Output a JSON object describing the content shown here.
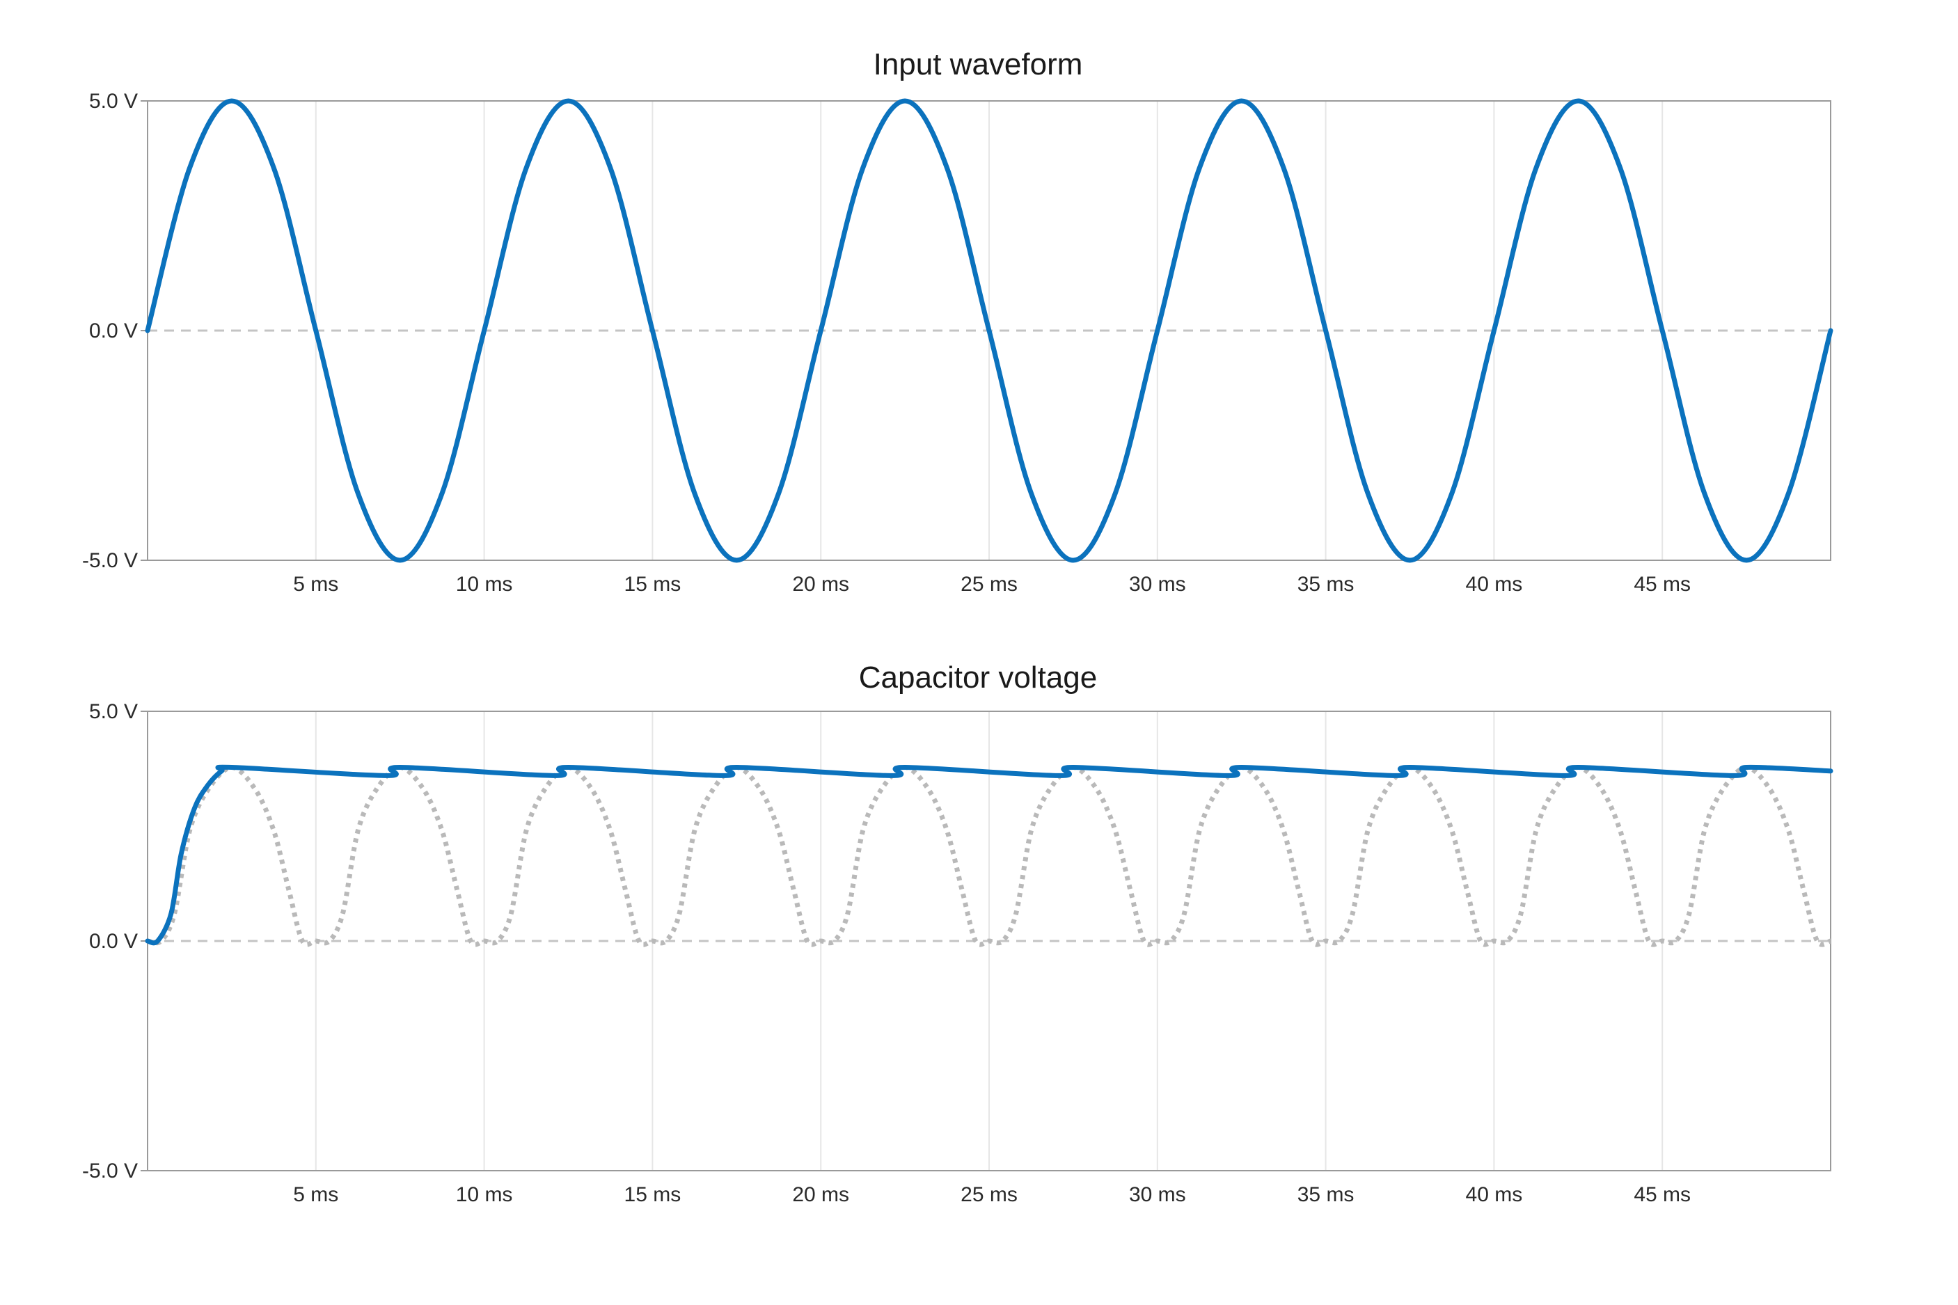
{
  "colors": {
    "series": "#0b72bd",
    "reference": "#b9b9b9",
    "zero_line": "#c4c4c4",
    "grid": "#e6e6e6",
    "axis": "#9a9a9a"
  },
  "chart_data": [
    {
      "type": "line",
      "title": "Input waveform",
      "xlabel": "",
      "ylabel": "",
      "xlim": [
        0,
        50
      ],
      "ylim": [
        -5,
        5
      ],
      "x_unit": "ms",
      "x_ticks": [
        5,
        10,
        15,
        20,
        25,
        30,
        35,
        40,
        45
      ],
      "x_tick_labels": [
        "5 ms",
        "10 ms",
        "15 ms",
        "20 ms",
        "25 ms",
        "30 ms",
        "35 ms",
        "40 ms",
        "45 ms"
      ],
      "y_ticks": [
        5,
        0,
        -5
      ],
      "y_tick_labels": [
        "5.0 V",
        "0.0 V",
        "-5.0 V"
      ],
      "grid": "vertical",
      "zero_line": "dashed",
      "series": [
        {
          "style": "solid",
          "x": [
            0,
            1.25,
            2.5,
            3.75,
            5,
            6.25,
            7.5,
            8.75,
            10,
            11.25,
            12.5,
            13.75,
            15,
            16.25,
            17.5,
            18.75,
            20,
            21.25,
            22.5,
            23.75,
            25,
            26.25,
            27.5,
            28.75,
            30,
            31.25,
            32.5,
            33.75,
            35,
            36.25,
            37.5,
            38.75,
            40,
            41.25,
            42.5,
            43.75,
            45,
            46.25,
            47.5,
            48.75,
            50
          ],
          "y": [
            0,
            3.54,
            5,
            3.54,
            0,
            -3.54,
            -5,
            -3.54,
            0,
            3.54,
            5,
            3.54,
            0,
            -3.54,
            -5,
            -3.54,
            0,
            3.54,
            5,
            3.54,
            0,
            -3.54,
            -5,
            -3.54,
            0,
            3.54,
            5,
            3.54,
            0,
            -3.54,
            -5,
            -3.54,
            0,
            3.54,
            5,
            3.54,
            0,
            -3.54,
            -5,
            -3.54,
            0
          ]
        }
      ]
    },
    {
      "type": "line",
      "title": "Capacitor voltage",
      "xlabel": "",
      "ylabel": "",
      "xlim": [
        0,
        50
      ],
      "ylim": [
        -5,
        5
      ],
      "x_unit": "ms",
      "x_ticks": [
        5,
        10,
        15,
        20,
        25,
        30,
        35,
        40,
        45
      ],
      "x_tick_labels": [
        "5 ms",
        "10 ms",
        "15 ms",
        "20 ms",
        "25 ms",
        "30 ms",
        "35 ms",
        "40 ms",
        "45 ms"
      ],
      "y_ticks": [
        5,
        0,
        -5
      ],
      "y_tick_labels": [
        "5.0 V",
        "0.0 V",
        "-5.0 V"
      ],
      "grid": "vertical",
      "zero_line": "dashed",
      "series": [
        {
          "style": "solid",
          "x": [
            0,
            0.3,
            0.7,
            1.0,
            1.4,
            1.8,
            2.2,
            2.5,
            7.1,
            7.5,
            12.1,
            12.5,
            17.1,
            17.5,
            22.1,
            22.5,
            27.1,
            27.5,
            32.1,
            32.5,
            37.1,
            37.5,
            42.1,
            42.5,
            47.1,
            47.5,
            50
          ],
          "y": [
            0,
            0,
            0.6,
            1.9,
            2.9,
            3.4,
            3.7,
            3.78,
            3.6,
            3.78,
            3.6,
            3.78,
            3.6,
            3.78,
            3.6,
            3.78,
            3.6,
            3.78,
            3.6,
            3.78,
            3.6,
            3.78,
            3.6,
            3.78,
            3.6,
            3.78,
            3.7
          ]
        },
        {
          "style": "dotted",
          "x": [
            0,
            0.4,
            0.8,
            1.25,
            1.8,
            2.5,
            3.2,
            3.75,
            4.2,
            4.6,
            5.0,
            5.4,
            5.8,
            6.25,
            6.8,
            7.5,
            8.2,
            8.75,
            9.2,
            9.6,
            10.0,
            10.4,
            10.8,
            11.25,
            11.8,
            12.5,
            13.2,
            13.75,
            14.2,
            14.6,
            15.0,
            15.4,
            15.8,
            16.25,
            16.8,
            17.5,
            18.2,
            18.75,
            19.2,
            19.6,
            20.0,
            20.4,
            20.8,
            21.25,
            21.8,
            22.5,
            23.2,
            23.75,
            24.2,
            24.6,
            25.0,
            25.4,
            25.8,
            26.25,
            26.8,
            27.5,
            28.2,
            28.75,
            29.2,
            29.6,
            30.0,
            30.4,
            30.8,
            31.25,
            31.8,
            32.5,
            33.2,
            33.75,
            34.2,
            34.6,
            35.0,
            35.4,
            35.8,
            36.25,
            36.8,
            37.5,
            38.2,
            38.75,
            39.2,
            39.6,
            40.0,
            40.4,
            40.8,
            41.25,
            41.8,
            42.5,
            43.2,
            43.75,
            44.2,
            44.6,
            45.0,
            45.4,
            45.8,
            46.25,
            46.8,
            47.5,
            48.2,
            48.75,
            49.2,
            49.6,
            50.0
          ],
          "y": [
            0,
            0,
            0.6,
            2.4,
            3.3,
            3.78,
            3.3,
            2.4,
            1.1,
            0,
            0,
            0,
            0.6,
            2.4,
            3.3,
            3.78,
            3.3,
            2.4,
            1.1,
            0,
            0,
            0,
            0.6,
            2.4,
            3.3,
            3.78,
            3.3,
            2.4,
            1.1,
            0,
            0,
            0,
            0.6,
            2.4,
            3.3,
            3.78,
            3.3,
            2.4,
            1.1,
            0,
            0,
            0,
            0.6,
            2.4,
            3.3,
            3.78,
            3.3,
            2.4,
            1.1,
            0,
            0,
            0,
            0.6,
            2.4,
            3.3,
            3.78,
            3.3,
            2.4,
            1.1,
            0,
            0,
            0,
            0.6,
            2.4,
            3.3,
            3.78,
            3.3,
            2.4,
            1.1,
            0,
            0,
            0,
            0.6,
            2.4,
            3.3,
            3.78,
            3.3,
            2.4,
            1.1,
            0,
            0,
            0,
            0.6,
            2.4,
            3.3,
            3.78,
            3.3,
            2.4,
            1.1,
            0,
            0,
            0,
            0.6,
            2.4,
            3.3,
            3.78,
            3.3,
            2.4,
            1.1,
            0,
            0
          ]
        }
      ]
    }
  ]
}
